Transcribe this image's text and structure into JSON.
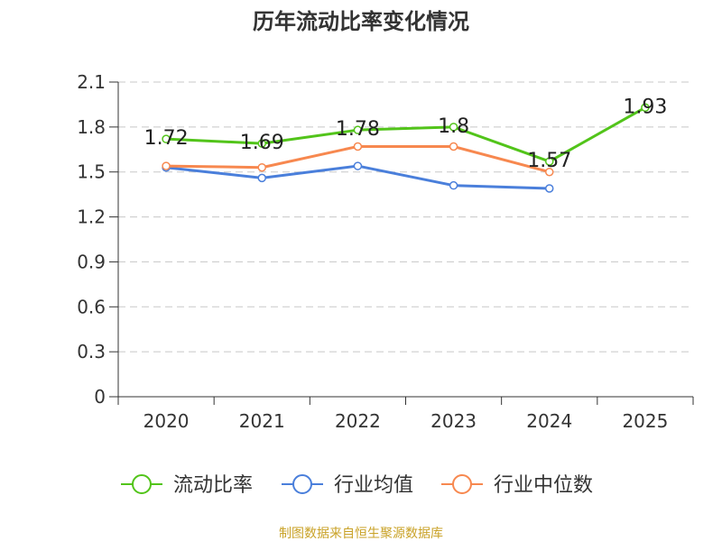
{
  "chart_data": {
    "type": "line",
    "title": "历年流动比率变化情况",
    "categories": [
      "2020",
      "2021",
      "2022",
      "2023",
      "2024",
      "2025"
    ],
    "y_ticks": [
      "0",
      "0.3",
      "0.6",
      "0.9",
      "1.2",
      "1.5",
      "1.8",
      "2.1"
    ],
    "ylim": [
      0,
      2.1
    ],
    "grid": true,
    "legend_position": "bottom",
    "series": [
      {
        "name": "流动比率",
        "color": "#52c41a",
        "values": [
          1.72,
          1.69,
          1.78,
          1.8,
          1.57,
          1.93
        ],
        "labels": [
          "1.72",
          "1.69",
          "1.78",
          "1.8",
          "1.57",
          "1.93"
        ]
      },
      {
        "name": "行业均值",
        "color": "#4a7fdb",
        "values": [
          1.53,
          1.46,
          1.54,
          1.41,
          1.39,
          null
        ]
      },
      {
        "name": "行业中位数",
        "color": "#f7884f",
        "values": [
          1.54,
          1.53,
          1.67,
          1.67,
          1.5,
          null
        ]
      }
    ]
  },
  "source_text": "制图数据来自恒生聚源数据库"
}
